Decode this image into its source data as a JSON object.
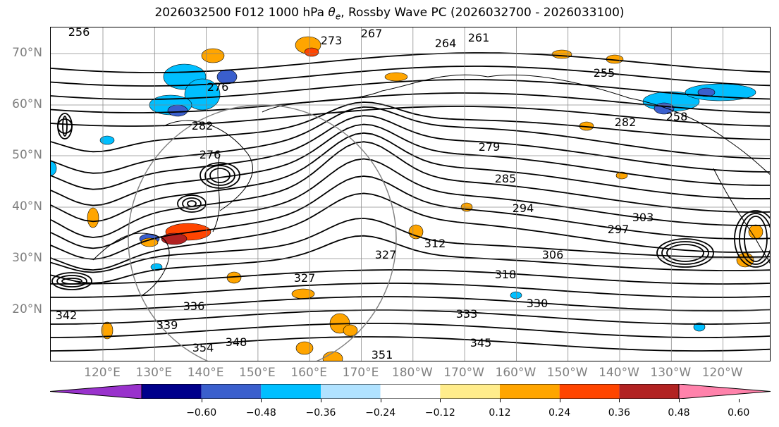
{
  "title": "2026032500 F012 1000 hPa θ_e, Rossby Wave PC (2026032700 - 2026033100)",
  "lat_labels": [
    "70°N",
    "60°N",
    "50°N",
    "40°N",
    "30°N",
    "20°N"
  ],
  "lon_labels": [
    "120°E",
    "130°E",
    "140°E",
    "150°E",
    "160°E",
    "170°E",
    "180°W",
    "170°W",
    "160°W",
    "150°W",
    "140°W",
    "130°W",
    "120°W"
  ],
  "colorbar": {
    "colors": [
      "#9932cc",
      "#00008b",
      "#3a5fcd",
      "#00bfff",
      "#b0e2ff",
      "#ffffff",
      "#ffec8b",
      "#ffa500",
      "#ff4500",
      "#b22222",
      "#ff82ab"
    ],
    "tick_labels": [
      "−0.60",
      "−0.48",
      "−0.36",
      "−0.24",
      "−0.12",
      "0.12",
      "0.24",
      "0.36",
      "0.48",
      "0.60"
    ]
  },
  "contour_labels": [
    "267",
    "261",
    "264",
    "273",
    "276",
    "282",
    "276",
    "279",
    "285",
    "294",
    "297",
    "303",
    "306",
    "312",
    "318",
    "327",
    "327",
    "330",
    "333",
    "336",
    "339",
    "342",
    "345",
    "348",
    "351",
    "354",
    "258",
    "282",
    "255",
    "256"
  ],
  "colors": {
    "frame": "#000000",
    "grid": "#808080",
    "axis_text": "#808080"
  }
}
